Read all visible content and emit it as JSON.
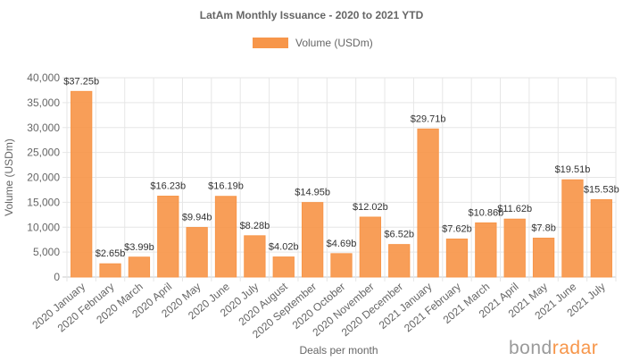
{
  "chart_data": {
    "type": "bar",
    "title": "LatAm Monthly Issuance - 2020 to 2021 YTD",
    "xlabel": "Deals per month",
    "ylabel": "Volume (USDm)",
    "ylim": [
      0,
      40000
    ],
    "yticks": [
      0,
      5000,
      10000,
      15000,
      20000,
      25000,
      30000,
      35000,
      40000
    ],
    "ytick_labels": [
      "0",
      "5,000",
      "10,000",
      "15,000",
      "20,000",
      "25,000",
      "30,000",
      "35,000",
      "40,000"
    ],
    "grid": true,
    "legend_position": "top-center",
    "bar_color": "#f7964a",
    "categories": [
      "2020 January",
      "2020 February",
      "2020 March",
      "2020 April",
      "2020 May",
      "2020 June",
      "2020 July",
      "2020 August",
      "2020 September",
      "2020 October",
      "2020 November",
      "2020 December",
      "2021 January",
      "2021 February",
      "2021 March",
      "2021 April",
      "2021 May",
      "2021 June",
      "2021 July"
    ],
    "series": [
      {
        "name": "Volume (USDm)",
        "values": [
          37250,
          2650,
          3990,
          16230,
          9940,
          16190,
          8280,
          4020,
          14950,
          4690,
          12020,
          6520,
          29710,
          7620,
          10860,
          11620,
          7800,
          19510,
          15530
        ],
        "labels": [
          "$37.25b",
          "$2.65b",
          "$3.99b",
          "$16.23b",
          "$9.94b",
          "$16.19b",
          "$8.28b",
          "$4.02b",
          "$14.95b",
          "$4.69b",
          "$12.02b",
          "$6.52b",
          "$29.71b",
          "$7.62b",
          "$10.86b",
          "$11.62b",
          "$7.8b",
          "$19.51b",
          "$15.53b"
        ]
      }
    ]
  },
  "branding": {
    "logo_part1": "bond",
    "logo_part2": "radar"
  }
}
